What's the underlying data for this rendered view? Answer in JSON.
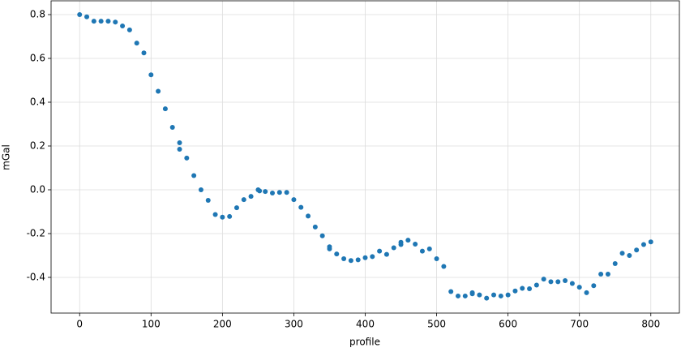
{
  "chart_data": {
    "type": "scatter",
    "xlabel": "profile",
    "ylabel": "mGal",
    "color": "#1f77b4",
    "grid": true,
    "x": [
      0,
      10,
      20,
      30,
      40,
      50,
      60,
      70,
      80,
      90,
      100,
      110,
      120,
      130,
      140,
      140,
      150,
      160,
      170,
      180,
      190,
      200,
      210,
      220,
      230,
      240,
      250,
      252,
      260,
      270,
      280,
      290,
      300,
      310,
      320,
      330,
      340,
      350,
      350,
      360,
      370,
      380,
      390,
      400,
      410,
      420,
      430,
      440,
      450,
      450,
      460,
      470,
      480,
      490,
      500,
      510,
      520,
      530,
      540,
      550,
      550,
      560,
      570,
      580,
      590,
      600,
      610,
      620,
      630,
      640,
      650,
      660,
      670,
      680,
      690,
      700,
      710,
      720,
      730,
      740,
      750,
      760,
      770,
      780,
      790,
      800
    ],
    "y": [
      0.8,
      0.79,
      0.77,
      0.77,
      0.77,
      0.766,
      0.748,
      0.73,
      0.67,
      0.625,
      0.525,
      0.45,
      0.37,
      0.285,
      0.215,
      0.185,
      0.145,
      0.065,
      0.0,
      -0.048,
      -0.113,
      -0.125,
      -0.122,
      -0.082,
      -0.045,
      -0.03,
      0.0,
      -0.005,
      -0.008,
      -0.015,
      -0.012,
      -0.012,
      -0.045,
      -0.08,
      -0.12,
      -0.17,
      -0.21,
      -0.26,
      -0.27,
      -0.293,
      -0.315,
      -0.323,
      -0.32,
      -0.31,
      -0.305,
      -0.28,
      -0.295,
      -0.265,
      -0.25,
      -0.24,
      -0.23,
      -0.248,
      -0.28,
      -0.27,
      -0.315,
      -0.35,
      -0.465,
      -0.485,
      -0.485,
      -0.47,
      -0.475,
      -0.48,
      -0.495,
      -0.48,
      -0.485,
      -0.48,
      -0.462,
      -0.45,
      -0.452,
      -0.435,
      -0.408,
      -0.42,
      -0.42,
      -0.415,
      -0.428,
      -0.445,
      -0.47,
      -0.438,
      -0.385,
      -0.385,
      -0.337,
      -0.29,
      -0.3,
      -0.275,
      -0.25,
      -0.238
    ],
    "xlim": [
      -40,
      840
    ],
    "ylim": [
      -0.563,
      0.863
    ],
    "xticks": [
      0,
      100,
      200,
      300,
      400,
      500,
      600,
      700,
      800
    ],
    "yticks": [
      -0.4,
      -0.2,
      {
        "value": 0,
        "label": "0.0"
      },
      0.2,
      0.4,
      0.6,
      0.8
    ]
  }
}
